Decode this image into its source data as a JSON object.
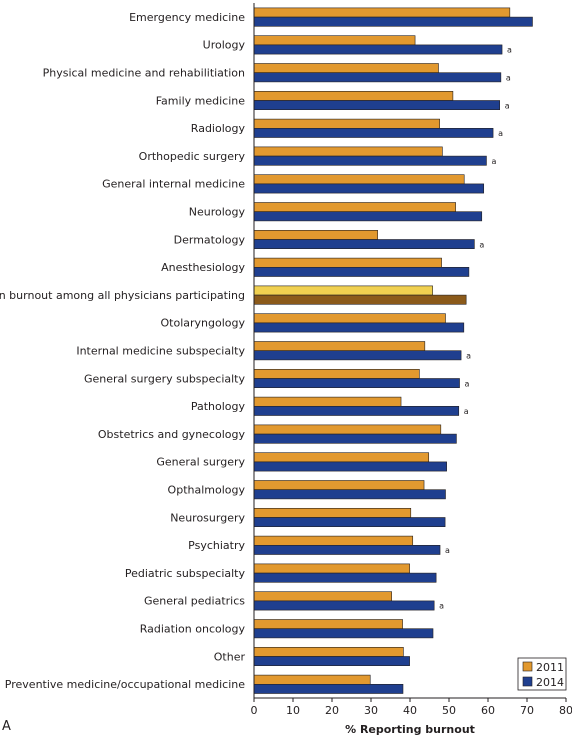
{
  "chart_data": {
    "type": "bar",
    "orientation": "horizontal",
    "xlabel": "% Reporting burnout",
    "xlim": [
      0,
      80
    ],
    "xticks": [
      "0",
      "10",
      "20",
      "30",
      "40",
      "50",
      "60",
      "70",
      "80"
    ],
    "panel_letter": "A",
    "legend_placement": "bottom-right",
    "highlight_category": "Mean burnout among all physicians participating",
    "colors": {
      "s2011": "#e2992f",
      "s2014": "#1f3f8f",
      "mean2011": "#f0d050",
      "mean2014": "#8b5a1a"
    },
    "categories": [
      "Emergency medicine",
      "Urology",
      "Physical medicine and rehabilitiation",
      "Family medicine",
      "Radiology",
      "Orthopedic surgery",
      "General internal medicine",
      "Neurology",
      "Dermatology",
      "Anesthesiology",
      "Mean burnout among all physicians participating",
      "Otolaryngology",
      "Internal medicine subspecialty",
      "General surgery subspecialty",
      "Pathology",
      "Obstetrics and gynecology",
      "General surgery",
      "Opthalmology",
      "Neurosurgery",
      "Psychiatry",
      "Pediatric subspecialty",
      "General pediatrics",
      "Radiation oncology",
      "Other",
      "Preventive medicine/occupational medicine"
    ],
    "series": [
      {
        "name": "2011",
        "values": [
          65.6,
          41.3,
          47.3,
          51.0,
          47.6,
          48.3,
          53.9,
          51.7,
          31.7,
          48.1,
          45.8,
          49.1,
          43.8,
          42.4,
          37.7,
          47.9,
          44.8,
          43.6,
          40.2,
          40.7,
          39.9,
          35.3,
          38.1,
          38.3,
          29.8
        ]
      },
      {
        "name": "2014",
        "values": [
          71.4,
          63.6,
          63.3,
          63.0,
          61.3,
          59.6,
          58.9,
          58.4,
          56.5,
          55.1,
          54.4,
          53.8,
          53.1,
          52.7,
          52.5,
          51.9,
          49.4,
          49.1,
          49.0,
          47.7,
          46.7,
          46.2,
          45.9,
          39.9,
          38.2
        ]
      }
    ],
    "annotation_symbol": "a",
    "annotated_categories": [
      "Urology",
      "Physical medicine and rehabilitiation",
      "Family medicine",
      "Radiology",
      "Orthopedic surgery",
      "Dermatology",
      "Internal medicine subspecialty",
      "General surgery subspecialty",
      "Pathology",
      "Psychiatry",
      "General pediatrics"
    ]
  }
}
